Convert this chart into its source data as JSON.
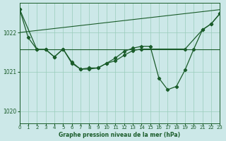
{
  "background_color": "#cce8e8",
  "plot_bg_color": "#cce8e8",
  "grid_color": "#99ccbb",
  "line_color": "#1a5c2a",
  "title": "Graphe pression niveau de la mer (hPa)",
  "xlim": [
    0,
    23
  ],
  "ylim": [
    1019.7,
    1022.75
  ],
  "yticks": [
    1020,
    1021,
    1022
  ],
  "xticks": [
    0,
    1,
    2,
    3,
    4,
    5,
    6,
    7,
    8,
    9,
    10,
    11,
    12,
    13,
    14,
    15,
    16,
    17,
    18,
    19,
    20,
    21,
    22,
    23
  ],
  "trend1_x": [
    0,
    23
  ],
  "trend1_y": [
    1021.58,
    1021.58
  ],
  "trend2_x": [
    0,
    23
  ],
  "trend2_y": [
    1022.0,
    1022.58
  ],
  "series1_x": [
    0,
    1,
    2,
    3,
    4,
    5,
    6,
    7,
    8,
    9,
    10,
    11,
    12,
    13,
    14,
    19,
    21,
    22,
    23
  ],
  "series1_y": [
    1022.6,
    1021.87,
    1021.57,
    1021.57,
    1021.38,
    1021.58,
    1021.22,
    1021.07,
    1021.07,
    1021.1,
    1021.22,
    1021.28,
    1021.42,
    1021.54,
    1021.58,
    1021.58,
    1022.07,
    1022.22,
    1022.48
  ],
  "series2_x": [
    0,
    2,
    3,
    4,
    5,
    6,
    7,
    8,
    9,
    10,
    11,
    12,
    13,
    14,
    15,
    16,
    17,
    18,
    19,
    20,
    21,
    22,
    23
  ],
  "series2_y": [
    1022.6,
    1021.57,
    1021.57,
    1021.38,
    1021.58,
    1021.25,
    1021.07,
    1021.1,
    1021.1,
    1021.22,
    1021.35,
    1021.52,
    1021.6,
    1021.65,
    1021.65,
    1020.84,
    1020.55,
    1020.63,
    1021.05,
    1021.58,
    1022.07,
    1022.22,
    1022.48
  ]
}
